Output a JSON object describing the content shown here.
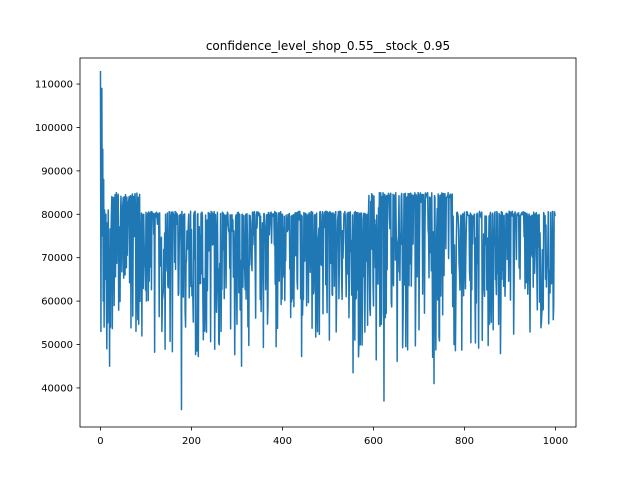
{
  "chart_data": {
    "type": "line",
    "title": "confidence_level_shop_0.55__stock_0.95",
    "xlabel": "",
    "ylabel": "",
    "xlim": [
      -45,
      1045
    ],
    "ylim": [
      31000,
      116000
    ],
    "x_ticks": [
      0,
      200,
      400,
      600,
      800,
      1000
    ],
    "y_ticks": [
      40000,
      50000,
      60000,
      70000,
      80000,
      90000,
      100000,
      110000
    ],
    "grid": false,
    "legend": "none",
    "color": "#1f77b4",
    "series": [
      {
        "x_start": 0,
        "x_step": 1,
        "count": 1000,
        "description": "noisy series; early spike to ~113000 at x=0, settling between ~45000 and ~85000",
        "key_values": [
          {
            "x": 0,
            "y": 113000
          },
          {
            "x": 1,
            "y": 53000
          },
          {
            "x": 3,
            "y": 109000
          },
          {
            "x": 8,
            "y": 54000
          },
          {
            "x": 14,
            "y": 49000
          },
          {
            "x": 20,
            "y": 45000
          },
          {
            "x": 178,
            "y": 35000
          },
          {
            "x": 310,
            "y": 45000
          },
          {
            "x": 555,
            "y": 43500
          },
          {
            "x": 623,
            "y": 37000
          },
          {
            "x": 733,
            "y": 41000
          }
        ],
        "segments": [
          {
            "from": 20,
            "to": 90,
            "high": 85000,
            "low": 53000,
            "typical_low": 62000
          },
          {
            "from": 90,
            "to": 590,
            "high": 80700,
            "low": 47000,
            "typical_low": 60000
          },
          {
            "from": 590,
            "to": 775,
            "high": 85000,
            "low": 46000,
            "typical_low": 57000
          },
          {
            "from": 775,
            "to": 1000,
            "high": 80700,
            "low": 47000,
            "typical_low": 60000
          }
        ]
      }
    ]
  }
}
